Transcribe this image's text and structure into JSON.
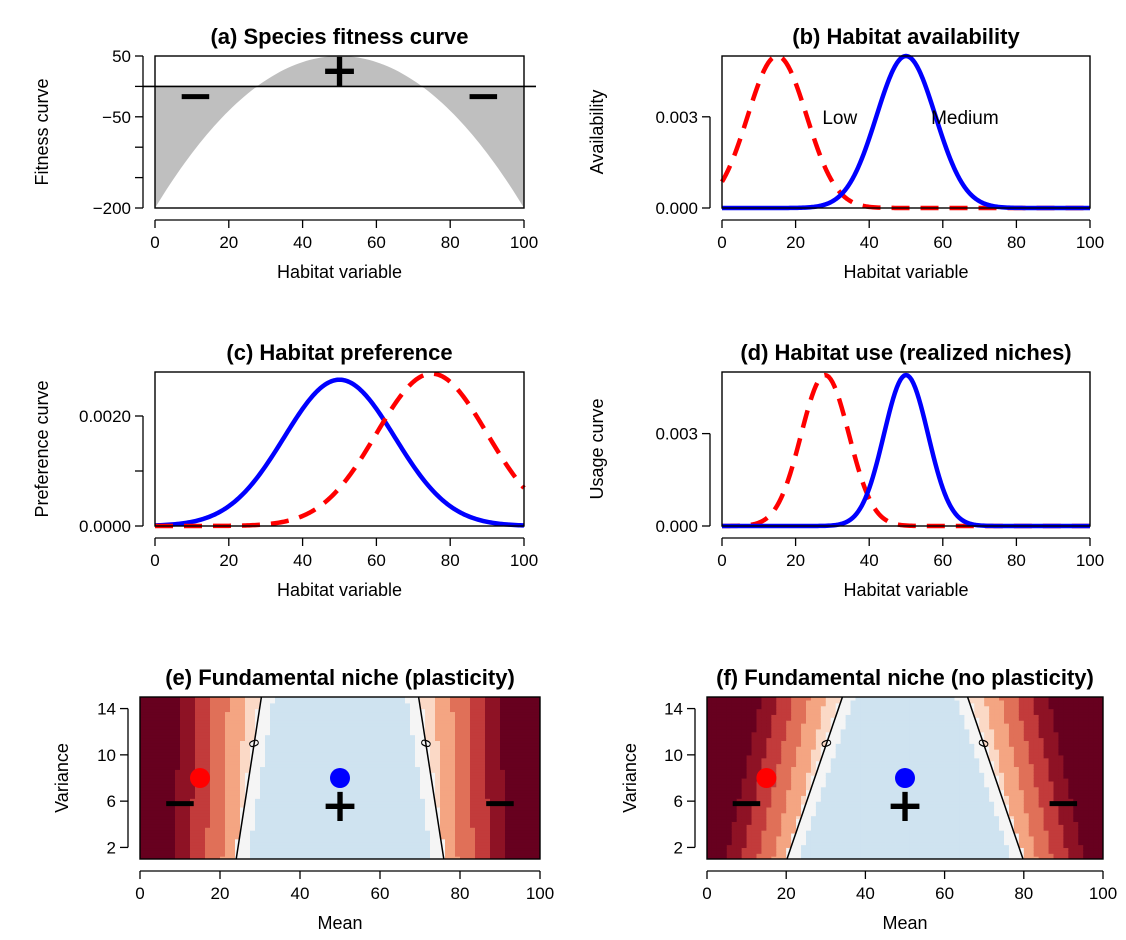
{
  "chart_data": [
    {
      "id": "a",
      "type": "area",
      "title": "(a) Species fitness curve",
      "xlabel": "Habitat variable",
      "ylabel": "Fitness curve",
      "xlim": [
        0,
        100
      ],
      "ylim": [
        -200,
        50
      ],
      "xticks": [
        0,
        20,
        40,
        60,
        80,
        100
      ],
      "yticks": [
        -200,
        -150,
        -100,
        -50,
        0,
        50
      ],
      "ytick_labels": [
        "−200",
        "",
        "",
        "−50",
        "",
        "50"
      ],
      "curve": {
        "type": "quadratic",
        "peak_x": 50,
        "peak_y": 50,
        "edge_y": -200
      },
      "fill_color": "#bfbfbf",
      "hline_y": 0,
      "annotations": [
        {
          "text": "+",
          "x": 50,
          "y": 25
        },
        {
          "text": "−",
          "x": 11,
          "y": -15
        },
        {
          "text": "−",
          "x": 89,
          "y": -15
        }
      ]
    },
    {
      "id": "b",
      "type": "line",
      "title": "(b) Habitat availability",
      "xlabel": "Habitat variable",
      "ylabel": "Availability",
      "xlim": [
        0,
        100
      ],
      "ylim": [
        0,
        0.005
      ],
      "xticks": [
        0,
        20,
        40,
        60,
        80,
        100
      ],
      "yticks": [
        0,
        0.003
      ],
      "ytick_labels": [
        "0.000",
        "0.003"
      ],
      "series": [
        {
          "name": "Low",
          "mean": 15,
          "sd": 8,
          "peak": 0.005,
          "color": "#ff0000",
          "dash": true
        },
        {
          "name": "Medium",
          "mean": 50,
          "sd": 8,
          "peak": 0.005,
          "color": "#0000ff",
          "dash": false
        }
      ],
      "labels": [
        {
          "text": "Low",
          "x": 32,
          "y": 0.003
        },
        {
          "text": "Medium",
          "x": 66,
          "y": 0.003
        }
      ]
    },
    {
      "id": "c",
      "type": "line",
      "title": "(c) Habitat preference",
      "xlabel": "Habitat variable",
      "ylabel": "Preference curve",
      "xlim": [
        0,
        100
      ],
      "ylim": [
        0,
        0.0028
      ],
      "xticks": [
        0,
        20,
        40,
        60,
        80,
        100
      ],
      "yticks": [
        0,
        0.001,
        0.002
      ],
      "ytick_labels": [
        "0.0000",
        "",
        "0.0020"
      ],
      "series": [
        {
          "mean": 50,
          "sd": 15,
          "peak": 0.00266,
          "color": "#0000ff",
          "dash": false
        },
        {
          "mean": 75,
          "sd": 15,
          "peak": 0.00277,
          "color": "#ff0000",
          "dash": true
        }
      ]
    },
    {
      "id": "d",
      "type": "line",
      "title": "(d) Habitat use (realized niches)",
      "xlabel": "Habitat variable",
      "ylabel": "Usage curve",
      "xlim": [
        0,
        100
      ],
      "ylim": [
        0,
        0.005
      ],
      "xticks": [
        0,
        20,
        40,
        60,
        80,
        100
      ],
      "yticks": [
        0,
        0.003
      ],
      "ytick_labels": [
        "0.000",
        "0.003"
      ],
      "series": [
        {
          "mean": 28,
          "sd": 6.5,
          "peak": 0.0049,
          "color": "#ff0000",
          "dash": true
        },
        {
          "mean": 50,
          "sd": 6,
          "peak": 0.0049,
          "color": "#0000ff",
          "dash": false
        }
      ]
    },
    {
      "id": "e",
      "type": "heatmap",
      "title": "(e) Fundamental niche (plasticity)",
      "xlabel": "Mean",
      "ylabel": "Variance",
      "xlim": [
        0,
        100
      ],
      "ylim": [
        1,
        15
      ],
      "xticks": [
        0,
        20,
        40,
        60,
        80,
        100
      ],
      "yticks": [
        2,
        6,
        10,
        14
      ],
      "contour_label": "0",
      "zero_contour": {
        "center": 50,
        "a": 22.8,
        "b": 0.45
      },
      "colors": {
        "positive": "#cfe3f0",
        "near_zero": "#f5f5f5",
        "bands": [
          "#fbd9c6",
          "#f4a582",
          "#e07058",
          "#c23b3b",
          "#8e1225",
          "#67001f"
        ]
      },
      "points": [
        {
          "x": 15,
          "y": 8,
          "color": "#ff0000"
        },
        {
          "x": 50,
          "y": 8,
          "color": "#0000ff"
        }
      ],
      "annotations": [
        {
          "text": "−",
          "x": 10,
          "y": 5.9
        },
        {
          "text": "+",
          "x": 50,
          "y": 5.6
        },
        {
          "text": "−",
          "x": 90,
          "y": 5.9
        }
      ]
    },
    {
      "id": "f",
      "type": "heatmap",
      "title": "(f) Fundamental niche (no plasticity)",
      "xlabel": "Mean",
      "ylabel": "Variance",
      "xlim": [
        0,
        100
      ],
      "ylim": [
        1,
        15
      ],
      "xticks": [
        0,
        20,
        40,
        60,
        80,
        100
      ],
      "yticks": [
        2,
        6,
        10,
        14
      ],
      "contour_label": "0",
      "zero_contour": {
        "center": 50,
        "a": 22.8,
        "b": 1.0
      },
      "colors": {
        "positive": "#cfe3f0",
        "near_zero": "#f5f5f5",
        "bands": [
          "#fbd9c6",
          "#f4a582",
          "#e07058",
          "#c23b3b",
          "#8e1225",
          "#67001f"
        ]
      },
      "points": [
        {
          "x": 15,
          "y": 8,
          "color": "#ff0000"
        },
        {
          "x": 50,
          "y": 8,
          "color": "#0000ff"
        }
      ],
      "annotations": [
        {
          "text": "−",
          "x": 10,
          "y": 5.9
        },
        {
          "text": "+",
          "x": 50,
          "y": 5.6
        },
        {
          "text": "−",
          "x": 90,
          "y": 5.9
        }
      ]
    }
  ]
}
